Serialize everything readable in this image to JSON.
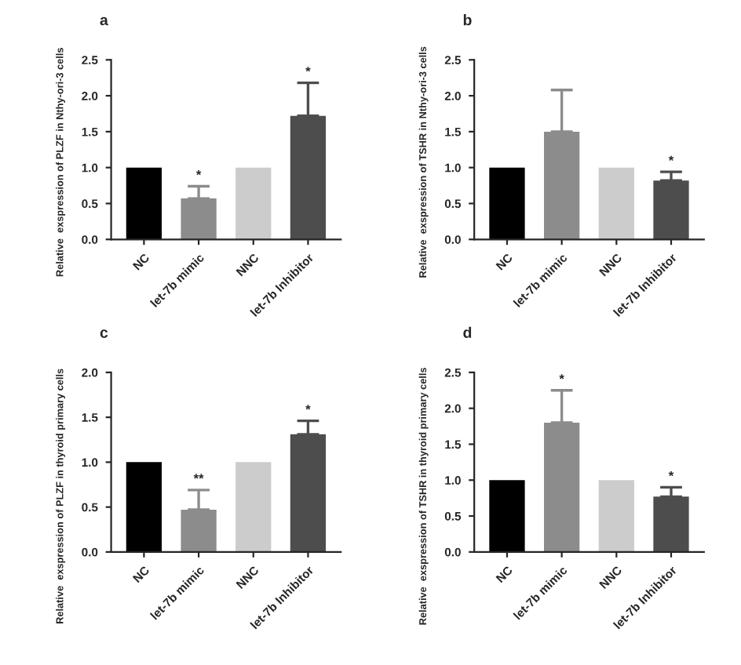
{
  "chart_data": [
    {
      "type": "bar",
      "title": "a",
      "ylabel": "Relative  exspression of PLZF in Nthy-ori-3 cells",
      "categories": [
        "NC",
        "let-7b mimic",
        "NNC",
        "let-7b Inhibitor"
      ],
      "values": [
        1.0,
        0.57,
        1.0,
        1.72
      ],
      "errors": [
        null,
        [
          0.57,
          0.74
        ],
        null,
        [
          1.72,
          2.18
        ]
      ],
      "colors": [
        "#000000",
        "#8c8c8c",
        "#cccccc",
        "#4d4d4d"
      ],
      "ylim": [
        0,
        2.5
      ],
      "yticks": [
        {
          "value": 0,
          "label": "0.0"
        },
        0.5,
        {
          "value": 1,
          "label": "1.0"
        },
        1.5,
        {
          "value": 2,
          "label": "2.0"
        },
        2.5
      ],
      "annotations": [
        {
          "text": "*",
          "x": "let-7b mimic",
          "y": 0.74
        },
        {
          "text": "*",
          "x": "let-7b Inhibitor",
          "y": 2.18
        }
      ]
    },
    {
      "type": "bar",
      "title": "b",
      "ylabel": "Relative  exspression of TSHR in Nthy-ori-3 cells",
      "categories": [
        "NC",
        "let-7b mimic",
        "NNC",
        "let-7b Inhibitor"
      ],
      "values": [
        1.0,
        1.5,
        1.0,
        0.82
      ],
      "errors": [
        null,
        [
          1.5,
          2.08
        ],
        null,
        [
          0.82,
          0.94
        ]
      ],
      "colors": [
        "#000000",
        "#8c8c8c",
        "#cccccc",
        "#4d4d4d"
      ],
      "ylim": [
        0,
        2.5
      ],
      "yticks": [
        {
          "value": 0,
          "label": "0.0"
        },
        0.5,
        {
          "value": 1,
          "label": "1.0"
        },
        1.5,
        {
          "value": 2,
          "label": "2.0"
        },
        2.5
      ],
      "annotations": [
        {
          "text": "*",
          "x": "let-7b Inhibitor",
          "y": 0.94
        }
      ]
    },
    {
      "type": "bar",
      "title": "c",
      "ylabel": "Relative  exspression of PLZF in thyroid primary cells",
      "categories": [
        "NC",
        "let-7b mimic",
        "NNC",
        "let-7b Inhibitor"
      ],
      "values": [
        1.0,
        0.47,
        1.0,
        1.31
      ],
      "errors": [
        null,
        [
          0.47,
          0.69
        ],
        null,
        [
          1.31,
          1.46
        ]
      ],
      "colors": [
        "#000000",
        "#8c8c8c",
        "#cccccc",
        "#4d4d4d"
      ],
      "ylim": [
        0,
        2.0
      ],
      "yticks": [
        {
          "value": 0,
          "label": "0.0"
        },
        0.5,
        {
          "value": 1,
          "label": "1.0"
        },
        1.5,
        {
          "value": 2,
          "label": "2.0"
        }
      ],
      "annotations": [
        {
          "text": "**",
          "x": "let-7b mimic",
          "y": 0.69
        },
        {
          "text": "*",
          "x": "let-7b Inhibitor",
          "y": 1.46
        }
      ]
    },
    {
      "type": "bar",
      "title": "d",
      "ylabel": "Relative  exspression of TSHR in thyroid primary cells",
      "categories": [
        "NC",
        "let-7b mimic",
        "NNC",
        "let-7b Inhibitor"
      ],
      "values": [
        1.0,
        1.8,
        1.0,
        0.77
      ],
      "errors": [
        null,
        [
          1.8,
          2.25
        ],
        null,
        [
          0.77,
          0.9
        ]
      ],
      "colors": [
        "#000000",
        "#8c8c8c",
        "#cccccc",
        "#4d4d4d"
      ],
      "ylim": [
        0,
        2.5
      ],
      "yticks": [
        {
          "value": 0,
          "label": "0.0"
        },
        0.5,
        {
          "value": 1,
          "label": "1.0"
        },
        1.5,
        {
          "value": 2,
          "label": "2.0"
        },
        2.5
      ],
      "annotations": [
        {
          "text": "*",
          "x": "let-7b mimic",
          "y": 2.25
        },
        {
          "text": "*",
          "x": "let-7b Inhibitor",
          "y": 0.9
        }
      ]
    }
  ]
}
